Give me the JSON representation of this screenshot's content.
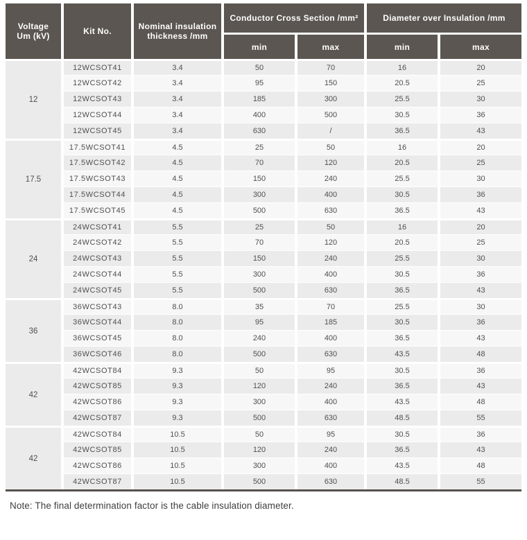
{
  "colors": {
    "header_bg": "#5b5651",
    "header_text": "#ffffff",
    "row_dark": "#ebebeb",
    "row_light": "#f7f7f7",
    "body_text": "#4f4f4f",
    "note_text": "#3f3f3f",
    "border_bottom": "#56514d"
  },
  "table": {
    "headers": {
      "voltage": "Voltage\nUm (kV)",
      "kit_no": "Kit No.",
      "thickness": "Nominal insulation\nthickness /mm",
      "conductor_cross_section": "Conductor Cross Section /mm²",
      "diameter_over_insulation": "Diameter over Insulation /mm",
      "min": "min",
      "max": "max"
    },
    "column_keys": [
      "kit_no",
      "thickness",
      "ccs_min",
      "ccs_max",
      "dia_min",
      "dia_max"
    ],
    "groups": [
      {
        "voltage": "12",
        "rows": [
          [
            "12WCSOT41",
            "3.4",
            "50",
            "70",
            "16",
            "20"
          ],
          [
            "12WCSOT42",
            "3.4",
            "95",
            "150",
            "20.5",
            "25"
          ],
          [
            "12WCSOT43",
            "3.4",
            "185",
            "300",
            "25.5",
            "30"
          ],
          [
            "12WCSOT44",
            "3.4",
            "400",
            "500",
            "30.5",
            "36"
          ],
          [
            "12WCSOT45",
            "3.4",
            "630",
            "/",
            "36.5",
            "43"
          ]
        ]
      },
      {
        "voltage": "17.5",
        "rows": [
          [
            "17.5WCSOT41",
            "4.5",
            "25",
            "50",
            "16",
            "20"
          ],
          [
            "17.5WCSOT42",
            "4.5",
            "70",
            "120",
            "20.5",
            "25"
          ],
          [
            "17.5WCSOT43",
            "4.5",
            "150",
            "240",
            "25.5",
            "30"
          ],
          [
            "17.5WCSOT44",
            "4.5",
            "300",
            "400",
            "30.5",
            "36"
          ],
          [
            "17.5WCSOT45",
            "4.5",
            "500",
            "630",
            "36.5",
            "43"
          ]
        ]
      },
      {
        "voltage": "24",
        "rows": [
          [
            "24WCSOT41",
            "5.5",
            "25",
            "50",
            "16",
            "20"
          ],
          [
            "24WCSOT42",
            "5.5",
            "70",
            "120",
            "20.5",
            "25"
          ],
          [
            "24WCSOT43",
            "5.5",
            "150",
            "240",
            "25.5",
            "30"
          ],
          [
            "24WCSOT44",
            "5.5",
            "300",
            "400",
            "30.5",
            "36"
          ],
          [
            "24WCSOT45",
            "5.5",
            "500",
            "630",
            "36.5",
            "43"
          ]
        ]
      },
      {
        "voltage": "36",
        "rows": [
          [
            "36WCSOT43",
            "8.0",
            "35",
            "70",
            "25.5",
            "30"
          ],
          [
            "36WCSOT44",
            "8.0",
            "95",
            "185",
            "30.5",
            "36"
          ],
          [
            "36WCSOT45",
            "8.0",
            "240",
            "400",
            "36.5",
            "43"
          ],
          [
            "36WCSOT46",
            "8.0",
            "500",
            "630",
            "43.5",
            "48"
          ]
        ]
      },
      {
        "voltage": "42",
        "rows": [
          [
            "42WCSOT84",
            "9.3",
            "50",
            "95",
            "30.5",
            "36"
          ],
          [
            "42WCSOT85",
            "9.3",
            "120",
            "240",
            "36.5",
            "43"
          ],
          [
            "42WCSOT86",
            "9.3",
            "300",
            "400",
            "43.5",
            "48"
          ],
          [
            "42WCSOT87",
            "9.3",
            "500",
            "630",
            "48.5",
            "55"
          ]
        ]
      },
      {
        "voltage": "42",
        "rows": [
          [
            "42WCSOT84",
            "10.5",
            "50",
            "95",
            "30.5",
            "36"
          ],
          [
            "42WCSOT85",
            "10.5",
            "120",
            "240",
            "36.5",
            "43"
          ],
          [
            "42WCSOT86",
            "10.5",
            "300",
            "400",
            "43.5",
            "48"
          ],
          [
            "42WCSOT87",
            "10.5",
            "500",
            "630",
            "48.5",
            "55"
          ]
        ]
      }
    ]
  },
  "note": "Note: The final determination factor is the cable insulation diameter."
}
